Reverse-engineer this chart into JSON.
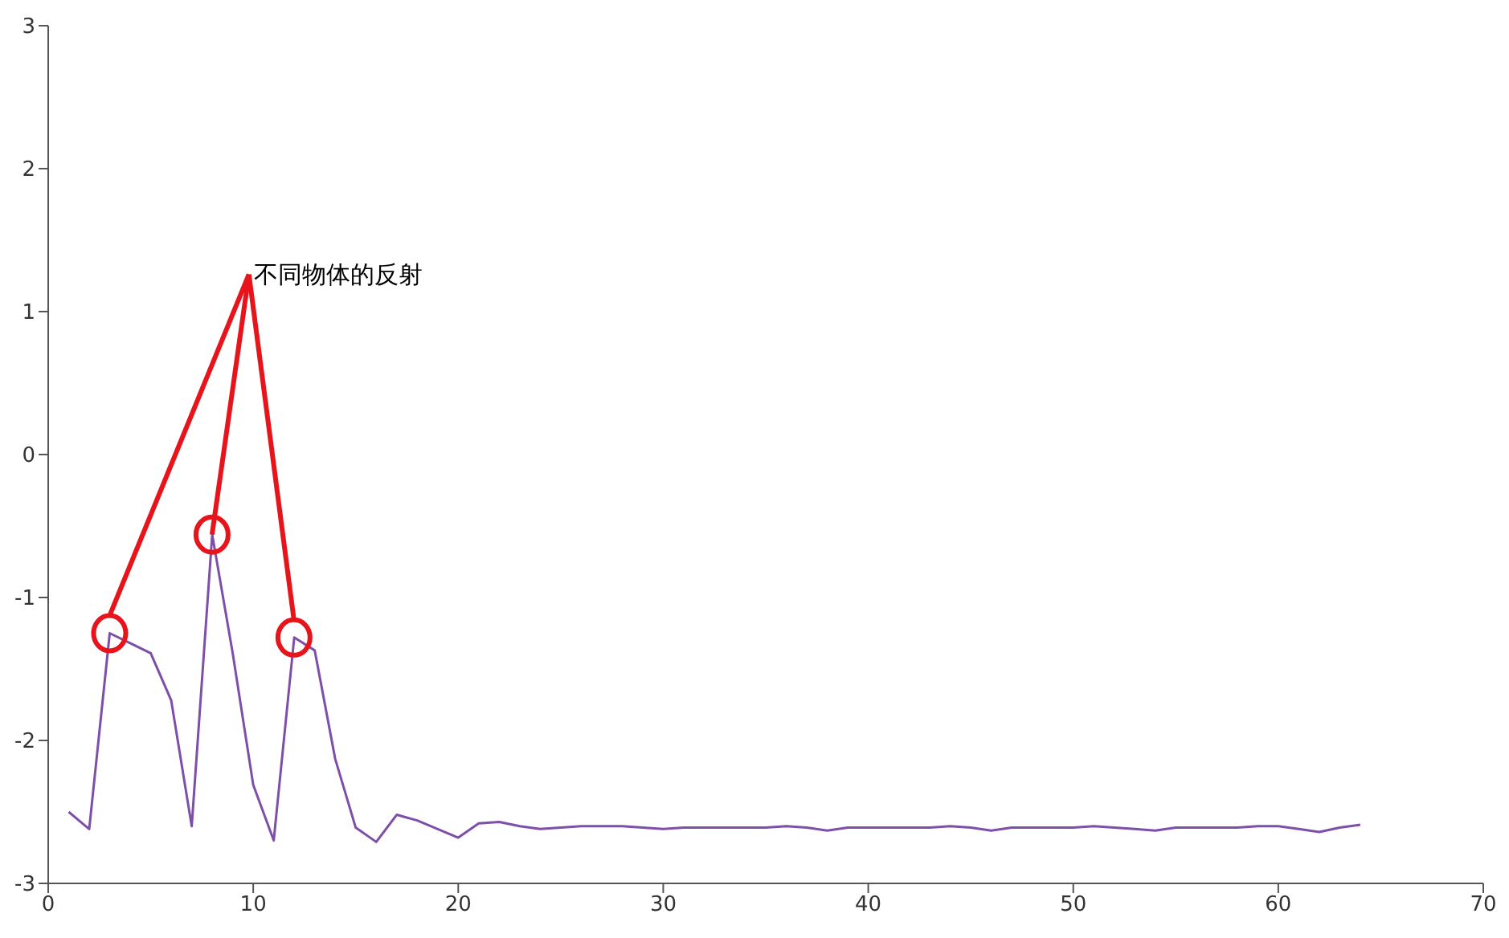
{
  "chart_data": {
    "type": "line",
    "x": [
      1,
      2,
      3,
      4,
      5,
      6,
      7,
      8,
      9,
      10,
      11,
      12,
      13,
      14,
      15,
      16,
      17,
      18,
      19,
      20,
      21,
      22,
      23,
      24,
      25,
      26,
      27,
      28,
      29,
      30,
      31,
      32,
      33,
      34,
      35,
      36,
      37,
      38,
      39,
      40,
      41,
      42,
      43,
      44,
      45,
      46,
      47,
      48,
      49,
      50,
      51,
      52,
      53,
      54,
      55,
      56,
      57,
      58,
      59,
      60,
      61,
      62,
      63,
      64
    ],
    "series": [
      {
        "color": "#7e4fa8",
        "values": [
          -2.5,
          -2.62,
          -1.25,
          -1.32,
          -1.39,
          -1.72,
          -2.6,
          -0.56,
          -1.39,
          -2.31,
          -2.7,
          -1.28,
          -1.37,
          -2.13,
          -2.61,
          -2.71,
          -2.52,
          -2.56,
          -2.62,
          -2.68,
          -2.58,
          -2.57,
          -2.6,
          -2.62,
          -2.61,
          -2.6,
          -2.6,
          -2.6,
          -2.61,
          -2.62,
          -2.61,
          -2.61,
          -2.61,
          -2.61,
          -2.61,
          -2.6,
          -2.61,
          -2.63,
          -2.61,
          -2.61,
          -2.61,
          -2.61,
          -2.61,
          -2.6,
          -2.61,
          -2.63,
          -2.61,
          -2.61,
          -2.61,
          -2.61,
          -2.6,
          -2.61,
          -2.62,
          -2.63,
          -2.61,
          -2.61,
          -2.61,
          -2.61,
          -2.6,
          -2.6,
          -2.62,
          -2.64,
          -2.61,
          -2.59
        ]
      }
    ],
    "annotations": [
      {
        "text": "不同物体的反射",
        "x": 8,
        "y": -0.56
      }
    ],
    "xlim": [
      0,
      70
    ],
    "xticks": [
      0,
      10,
      20,
      30,
      40,
      50,
      60,
      70
    ],
    "ylim": [
      -3,
      3
    ],
    "yticks": [
      -3,
      -2,
      -1,
      0,
      1,
      2,
      3
    ],
    "grid": false,
    "legend": false,
    "marker": "none",
    "line_style": "solid"
  }
}
